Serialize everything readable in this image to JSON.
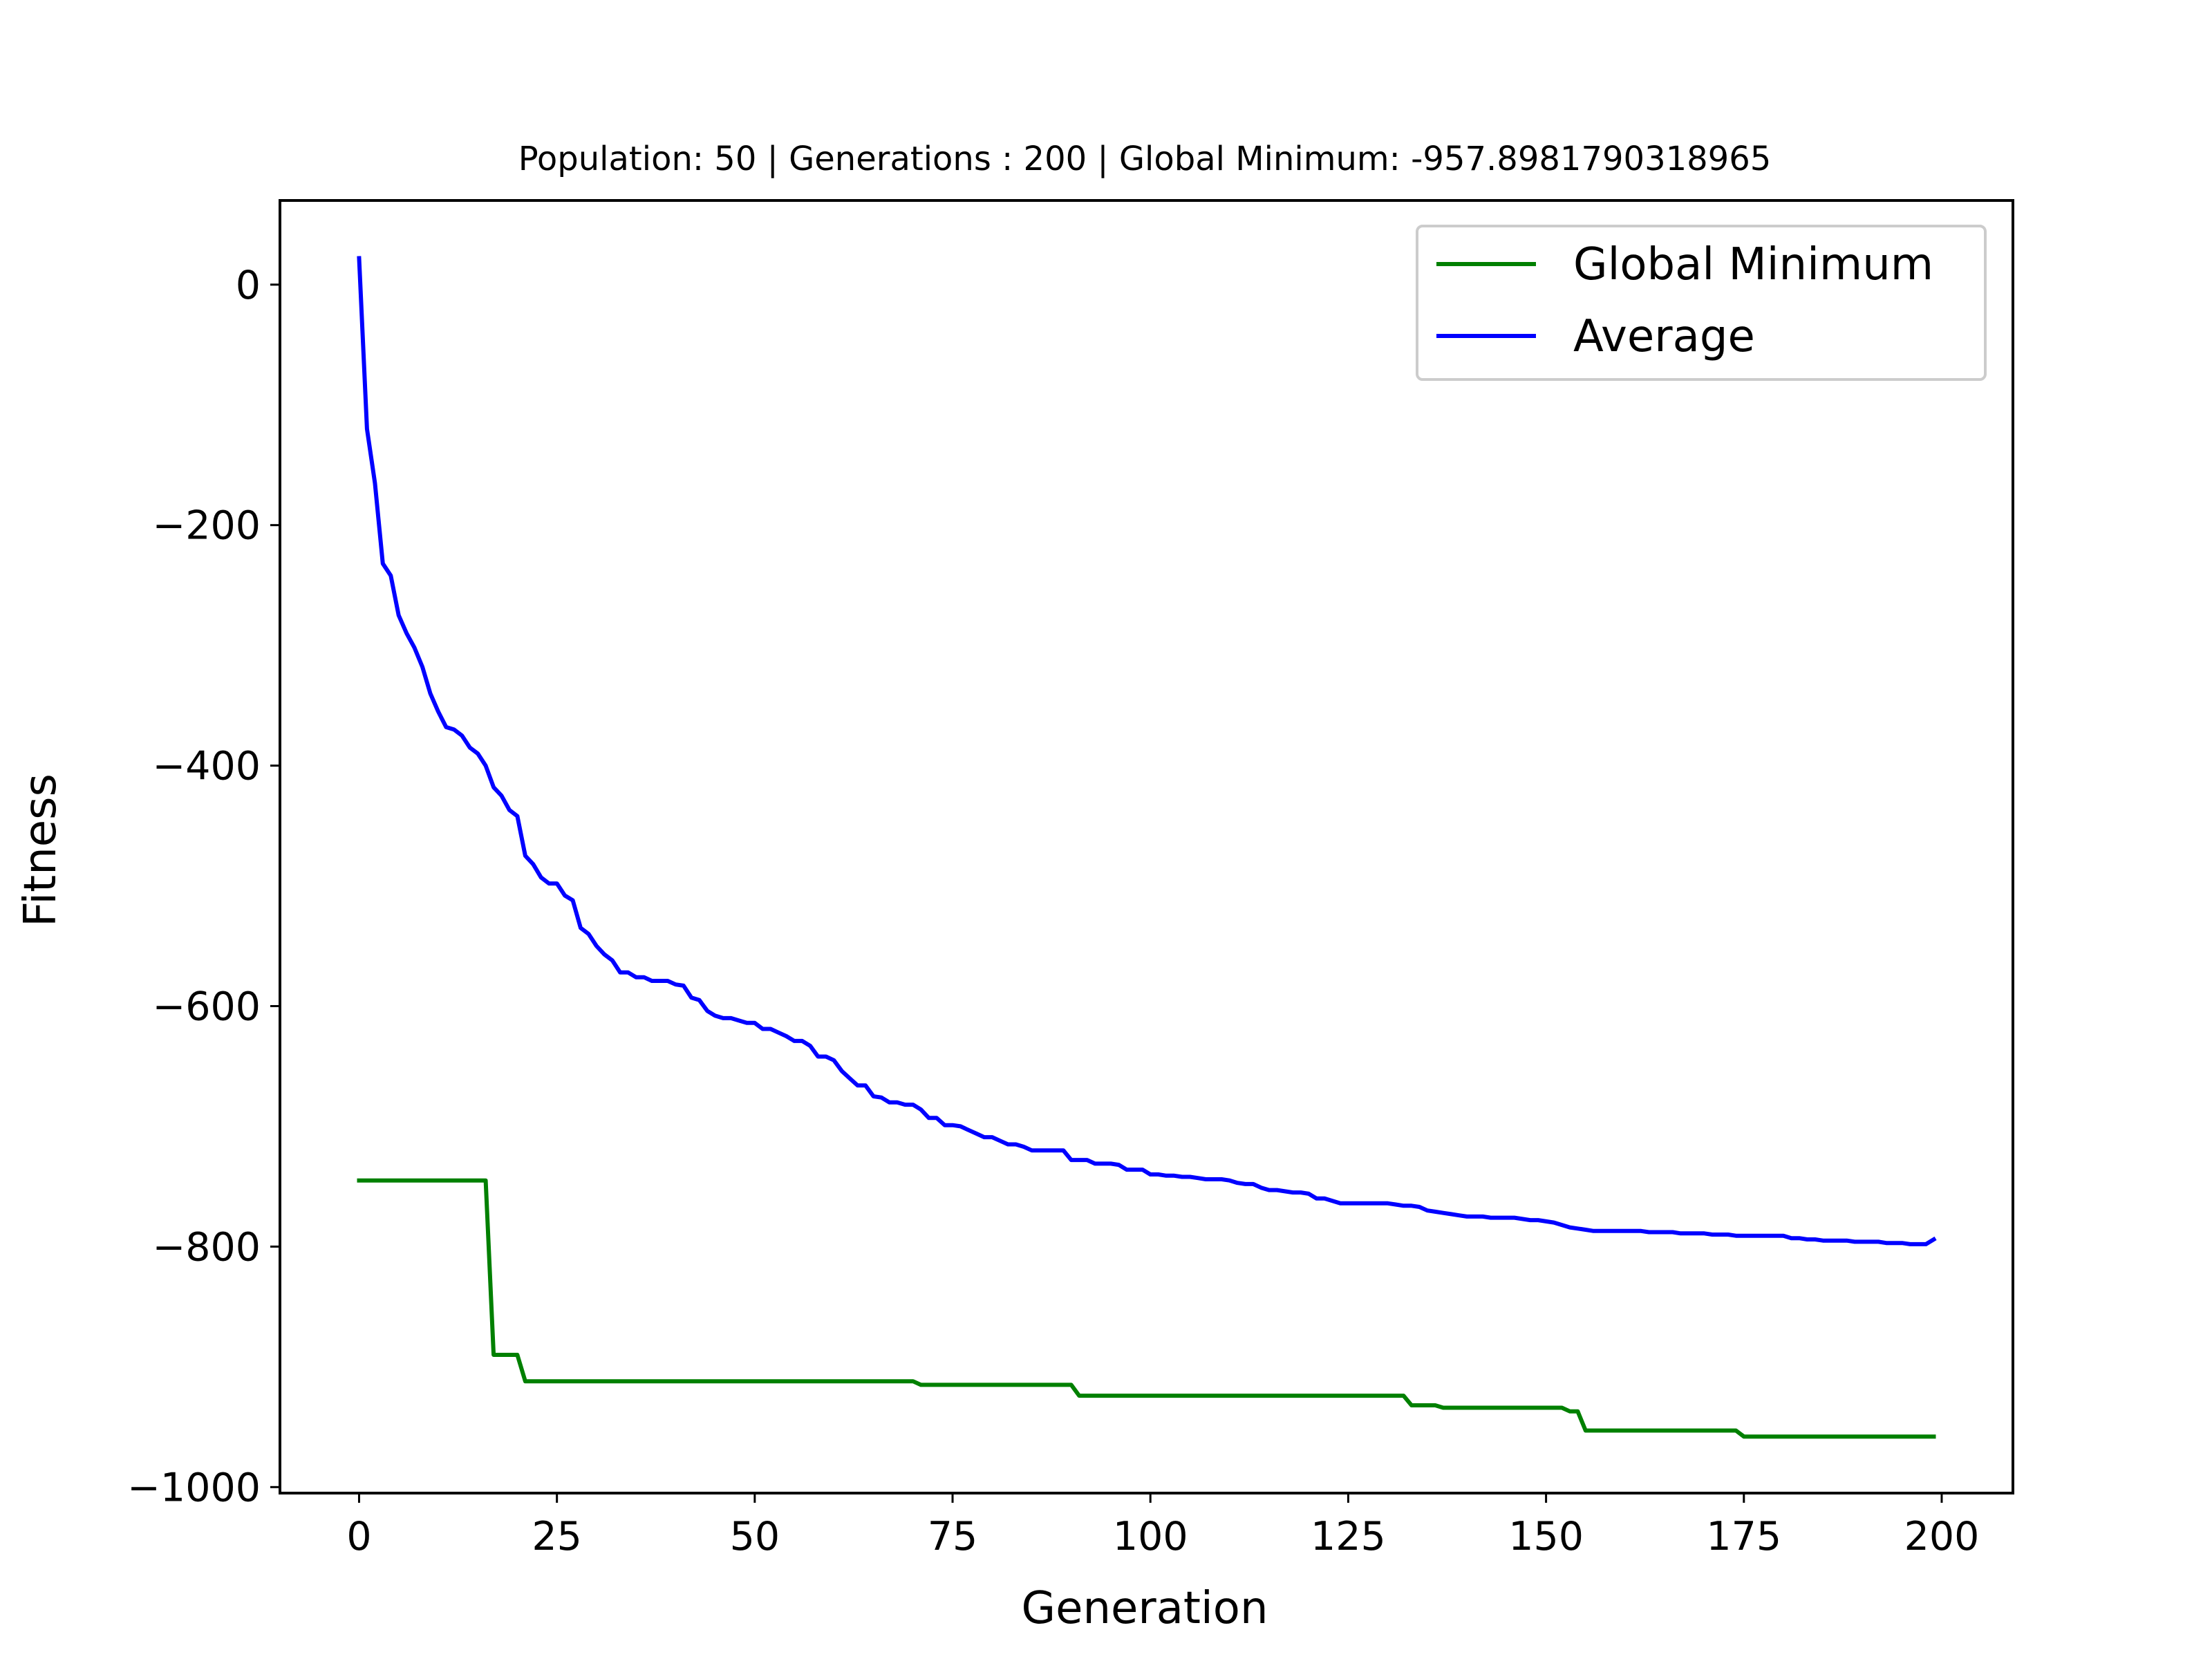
{
  "chart_data": {
    "type": "line",
    "title": "Population: 50 | Generations : 200 | Global Minimum: -957.8981790318965",
    "xlabel": "Generation",
    "ylabel": "Fitness",
    "xlim": [
      -10,
      209
    ],
    "ylim": [
      -1005,
      70
    ],
    "xticks": [
      0,
      25,
      50,
      75,
      100,
      125,
      150,
      175,
      200
    ],
    "yticks": [
      0,
      -200,
      -400,
      -600,
      -800,
      -1000
    ],
    "xtick_labels": [
      "0",
      "25",
      "50",
      "75",
      "100",
      "125",
      "150",
      "175",
      "200"
    ],
    "ytick_labels": [
      "0",
      "−200",
      "−400",
      "−600",
      "−800",
      "−1000"
    ],
    "grid": false,
    "legend": "top-right",
    "series": [
      {
        "name": "Global Minimum",
        "color": "#008000",
        "points": [
          [
            0,
            -745
          ],
          [
            16,
            -745
          ],
          [
            17,
            -890
          ],
          [
            20,
            -890
          ],
          [
            21,
            -912
          ],
          [
            70,
            -912
          ],
          [
            71,
            -915
          ],
          [
            90,
            -915
          ],
          [
            91,
            -924
          ],
          [
            132,
            -924
          ],
          [
            133,
            -932
          ],
          [
            136,
            -932
          ],
          [
            137,
            -934
          ],
          [
            152,
            -934
          ],
          [
            153,
            -937
          ],
          [
            154,
            -937
          ],
          [
            155,
            -953
          ],
          [
            174,
            -953
          ],
          [
            175,
            -958
          ],
          [
            199,
            -958
          ]
        ]
      },
      {
        "name": "Average",
        "color": "#0000ff",
        "points": [
          [
            0,
            22
          ],
          [
            1,
            -120
          ],
          [
            2,
            -165
          ],
          [
            3,
            -232
          ],
          [
            4,
            -242
          ],
          [
            5,
            -275
          ],
          [
            6,
            -290
          ],
          [
            7,
            -302
          ],
          [
            8,
            -318
          ],
          [
            9,
            -340
          ],
          [
            10,
            -355
          ],
          [
            11,
            -368
          ],
          [
            12,
            -370
          ],
          [
            13,
            -375
          ],
          [
            14,
            -385
          ],
          [
            15,
            -390
          ],
          [
            16,
            -400
          ],
          [
            17,
            -418
          ],
          [
            18,
            -425
          ],
          [
            19,
            -437
          ],
          [
            20,
            -442
          ],
          [
            21,
            -475
          ],
          [
            22,
            -482
          ],
          [
            23,
            -493
          ],
          [
            24,
            -498
          ],
          [
            25,
            -498
          ],
          [
            26,
            -508
          ],
          [
            27,
            -512
          ],
          [
            28,
            -535
          ],
          [
            29,
            -540
          ],
          [
            30,
            -550
          ],
          [
            31,
            -557
          ],
          [
            32,
            -562
          ],
          [
            33,
            -572
          ],
          [
            34,
            -572
          ],
          [
            35,
            -576
          ],
          [
            36,
            -576
          ],
          [
            37,
            -579
          ],
          [
            38,
            -579
          ],
          [
            39,
            -579
          ],
          [
            40,
            -582
          ],
          [
            41,
            -583
          ],
          [
            42,
            -593
          ],
          [
            43,
            -595
          ],
          [
            44,
            -604
          ],
          [
            45,
            -608
          ],
          [
            46,
            -610
          ],
          [
            47,
            -610
          ],
          [
            48,
            -612
          ],
          [
            49,
            -614
          ],
          [
            50,
            -614
          ],
          [
            51,
            -619
          ],
          [
            52,
            -619
          ],
          [
            53,
            -622
          ],
          [
            54,
            -625
          ],
          [
            55,
            -629
          ],
          [
            56,
            -629
          ],
          [
            57,
            -633
          ],
          [
            58,
            -642
          ],
          [
            59,
            -642
          ],
          [
            60,
            -645
          ],
          [
            61,
            -654
          ],
          [
            62,
            -660
          ],
          [
            63,
            -666
          ],
          [
            64,
            -666
          ],
          [
            65,
            -675
          ],
          [
            66,
            -676
          ],
          [
            67,
            -680
          ],
          [
            68,
            -680
          ],
          [
            69,
            -682
          ],
          [
            70,
            -682
          ],
          [
            71,
            -686
          ],
          [
            72,
            -693
          ],
          [
            73,
            -693
          ],
          [
            74,
            -699
          ],
          [
            75,
            -699
          ],
          [
            76,
            -700
          ],
          [
            77,
            -703
          ],
          [
            78,
            -706
          ],
          [
            79,
            -709
          ],
          [
            80,
            -709
          ],
          [
            81,
            -712
          ],
          [
            82,
            -715
          ],
          [
            83,
            -715
          ],
          [
            84,
            -717
          ],
          [
            85,
            -720
          ],
          [
            86,
            -720
          ],
          [
            87,
            -720
          ],
          [
            88,
            -720
          ],
          [
            89,
            -720
          ],
          [
            90,
            -728
          ],
          [
            91,
            -728
          ],
          [
            92,
            -728
          ],
          [
            93,
            -731
          ],
          [
            94,
            -731
          ],
          [
            95,
            -731
          ],
          [
            96,
            -732
          ],
          [
            97,
            -736
          ],
          [
            98,
            -736
          ],
          [
            99,
            -736
          ],
          [
            100,
            -740
          ],
          [
            101,
            -740
          ],
          [
            102,
            -741
          ],
          [
            103,
            -741
          ],
          [
            104,
            -742
          ],
          [
            105,
            -742
          ],
          [
            106,
            -743
          ],
          [
            107,
            -744
          ],
          [
            108,
            -744
          ],
          [
            109,
            -744
          ],
          [
            110,
            -745
          ],
          [
            111,
            -747
          ],
          [
            112,
            -748
          ],
          [
            113,
            -748
          ],
          [
            114,
            -751
          ],
          [
            115,
            -753
          ],
          [
            116,
            -753
          ],
          [
            117,
            -754
          ],
          [
            118,
            -755
          ],
          [
            119,
            -755
          ],
          [
            120,
            -756
          ],
          [
            121,
            -760
          ],
          [
            122,
            -760
          ],
          [
            123,
            -762
          ],
          [
            124,
            -764
          ],
          [
            125,
            -764
          ],
          [
            126,
            -764
          ],
          [
            127,
            -764
          ],
          [
            128,
            -764
          ],
          [
            129,
            -764
          ],
          [
            130,
            -764
          ],
          [
            131,
            -765
          ],
          [
            132,
            -766
          ],
          [
            133,
            -766
          ],
          [
            134,
            -767
          ],
          [
            135,
            -770
          ],
          [
            136,
            -771
          ],
          [
            137,
            -772
          ],
          [
            138,
            -773
          ],
          [
            139,
            -774
          ],
          [
            140,
            -775
          ],
          [
            141,
            -775
          ],
          [
            142,
            -775
          ],
          [
            143,
            -776
          ],
          [
            144,
            -776
          ],
          [
            145,
            -776
          ],
          [
            146,
            -776
          ],
          [
            147,
            -777
          ],
          [
            148,
            -778
          ],
          [
            149,
            -778
          ],
          [
            150,
            -779
          ],
          [
            151,
            -780
          ],
          [
            152,
            -782
          ],
          [
            153,
            -784
          ],
          [
            154,
            -785
          ],
          [
            155,
            -786
          ],
          [
            156,
            -787
          ],
          [
            157,
            -787
          ],
          [
            158,
            -787
          ],
          [
            159,
            -787
          ],
          [
            160,
            -787
          ],
          [
            161,
            -787
          ],
          [
            162,
            -787
          ],
          [
            163,
            -788
          ],
          [
            164,
            -788
          ],
          [
            165,
            -788
          ],
          [
            166,
            -788
          ],
          [
            167,
            -789
          ],
          [
            168,
            -789
          ],
          [
            169,
            -789
          ],
          [
            170,
            -789
          ],
          [
            171,
            -790
          ],
          [
            172,
            -790
          ],
          [
            173,
            -790
          ],
          [
            174,
            -791
          ],
          [
            175,
            -791
          ],
          [
            176,
            -791
          ],
          [
            177,
            -791
          ],
          [
            178,
            -791
          ],
          [
            179,
            -791
          ],
          [
            180,
            -791
          ],
          [
            181,
            -793
          ],
          [
            182,
            -793
          ],
          [
            183,
            -794
          ],
          [
            184,
            -794
          ],
          [
            185,
            -795
          ],
          [
            186,
            -795
          ],
          [
            187,
            -795
          ],
          [
            188,
            -795
          ],
          [
            189,
            -796
          ],
          [
            190,
            -796
          ],
          [
            191,
            -796
          ],
          [
            192,
            -796
          ],
          [
            193,
            -797
          ],
          [
            194,
            -797
          ],
          [
            195,
            -797
          ],
          [
            196,
            -798
          ],
          [
            197,
            -798
          ],
          [
            198,
            -798
          ],
          [
            199,
            -794
          ]
        ]
      }
    ]
  }
}
